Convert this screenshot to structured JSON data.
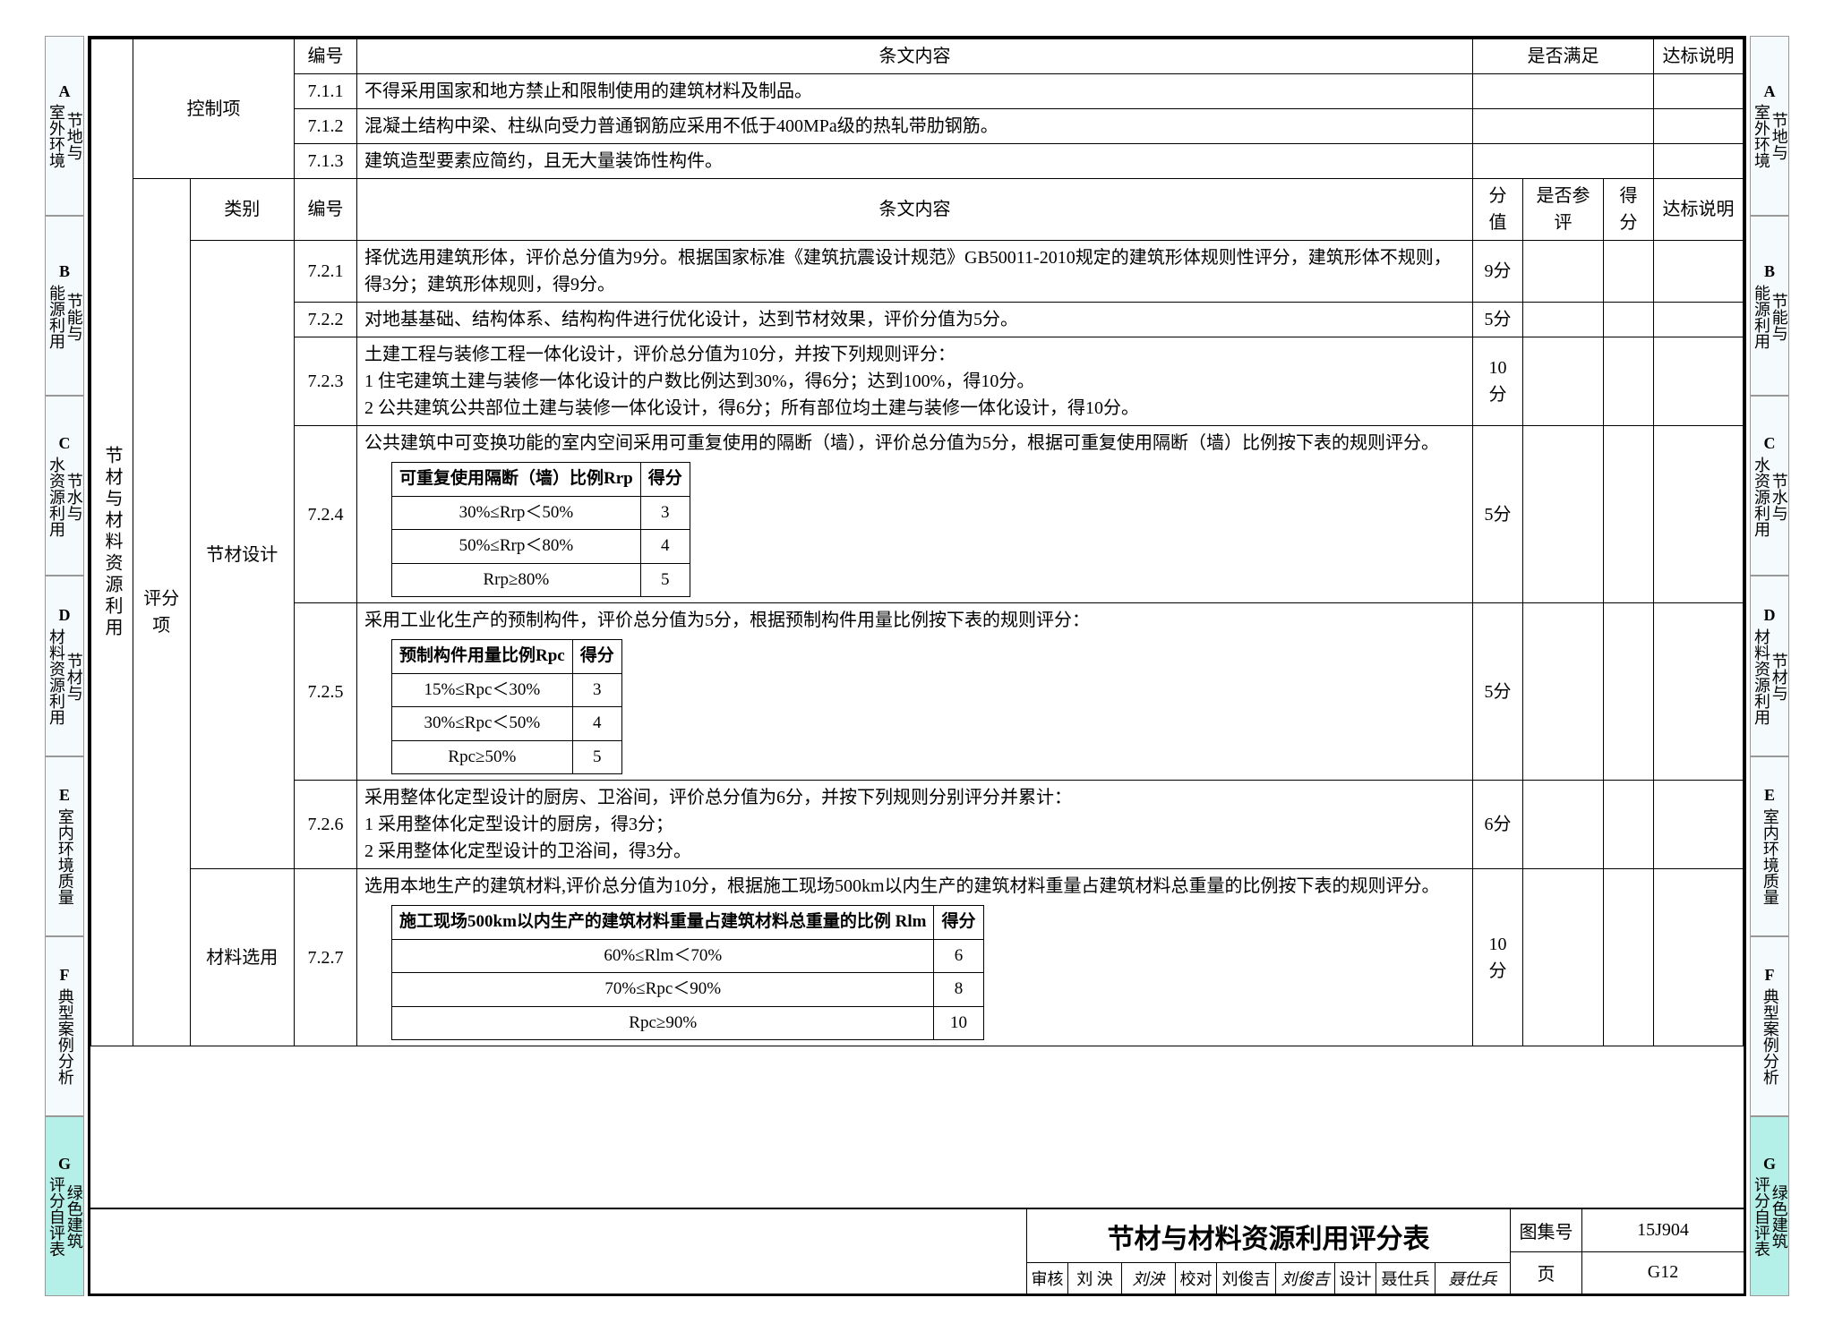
{
  "tabs": [
    {
      "letter": "A",
      "text": "节地与\n室外环境"
    },
    {
      "letter": "B",
      "text": "节能与\n能源利用"
    },
    {
      "letter": "C",
      "text": "节水与\n水资源利用"
    },
    {
      "letter": "D",
      "text": "节材与\n材料资源利用"
    },
    {
      "letter": "E",
      "text": "室内环境质量"
    },
    {
      "letter": "F",
      "text": "典型案例分析"
    },
    {
      "letter": "G",
      "text": "绿色建筑\n评分自评表",
      "active": true
    }
  ],
  "section1": {
    "group": "控制项",
    "h_num": "编号",
    "h_content": "条文内容",
    "h_meet": "是否满足",
    "h_note": "达标说明",
    "rows": [
      {
        "num": "7.1.1",
        "text": "不得采用国家和地方禁止和限制使用的建筑材料及制品。"
      },
      {
        "num": "7.1.2",
        "text": "混凝土结构中梁、柱纵向受力普通钢筋应采用不低于400MPa级的热轧带肋钢筋。"
      },
      {
        "num": "7.1.3",
        "text": "建筑造型要素应简约，且无大量装饰性构件。"
      }
    ]
  },
  "section2": {
    "side": "节材与材料资源利用",
    "group": "评分项",
    "h_cat": "类别",
    "h_num": "编号",
    "h_content": "条文内容",
    "h_score": "分值",
    "h_eval": "是否参评",
    "h_got": "得分",
    "h_note": "达标说明",
    "cat1": "节材设计",
    "cat2": "材料选用",
    "rows": [
      {
        "num": "7.2.1",
        "text": "择优选用建筑形体，评价总分值为9分。根据国家标准《建筑抗震设计规范》GB50011-2010规定的建筑形体规则性评分，建筑形体不规则，得3分；建筑形体规则，得9分。",
        "score": "9分"
      },
      {
        "num": "7.2.2",
        "text": "对地基基础、结构体系、结构构件进行优化设计，达到节材效果，评价分值为5分。",
        "score": "5分"
      },
      {
        "num": "7.2.3",
        "text": "土建工程与装修工程一体化设计，评价总分值为10分，并按下列规则评分：\n1 住宅建筑土建与装修一体化设计的户数比例达到30%，得6分；达到100%，得10分。\n2 公共建筑公共部位土建与装修一体化设计，得6分；所有部位均土建与装修一体化设计，得10分。",
        "score": "10分"
      },
      {
        "num": "7.2.4",
        "lead": "公共建筑中可变换功能的室内空间采用可重复使用的隔断（墙），评价总分值为5分，根据可重复使用隔断（墙）比例按下表的规则评分。",
        "score": "5分",
        "inner": {
          "h1": "可重复使用隔断（墙）比例Rrp",
          "h2": "得分",
          "rows": [
            [
              "30%≤Rrp＜50%",
              "3"
            ],
            [
              "50%≤Rrp＜80%",
              "4"
            ],
            [
              "Rrp≥80%",
              "5"
            ]
          ]
        }
      },
      {
        "num": "7.2.5",
        "lead": "采用工业化生产的预制构件，评价总分值为5分，根据预制构件用量比例按下表的规则评分：",
        "score": "5分",
        "inner": {
          "h1": "预制构件用量比例Rpc",
          "h2": "得分",
          "rows": [
            [
              "15%≤Rpc＜30%",
              "3"
            ],
            [
              "30%≤Rpc＜50%",
              "4"
            ],
            [
              "Rpc≥50%",
              "5"
            ]
          ]
        }
      },
      {
        "num": "7.2.6",
        "text": "采用整体化定型设计的厨房、卫浴间，评价总分值为6分，并按下列规则分别评分并累计：\n1 采用整体化定型设计的厨房，得3分；\n2 采用整体化定型设计的卫浴间，得3分。",
        "score": "6分"
      },
      {
        "num": "7.2.7",
        "lead": "选用本地生产的建筑材料,评价总分值为10分，根据施工现场500km以内生产的建筑材料重量占建筑材料总重量的比例按下表的规则评分。",
        "score": "10分",
        "inner": {
          "h1": "施工现场500km以内生产的建筑材料重量占建筑材料总重量的比例 Rlm",
          "h2": "得分",
          "rows": [
            [
              "60%≤Rlm＜70%",
              "6"
            ],
            [
              "70%≤Rpc＜90%",
              "8"
            ],
            [
              "Rpc≥90%",
              "10"
            ]
          ]
        }
      }
    ]
  },
  "titleblock": {
    "title": "节材与材料资源利用评分表",
    "signs": {
      "l1": "审核",
      "p1": "刘 泱",
      "s1": "刘泱",
      "l2": "校对",
      "p2": "刘俊吉",
      "s2": "刘俊吉",
      "l3": "设计",
      "p3": "聂仕兵",
      "s3": "聂仕兵"
    },
    "lbl_set": "图集号",
    "val_set": "15J904",
    "lbl_page": "页",
    "val_page": "G12"
  }
}
